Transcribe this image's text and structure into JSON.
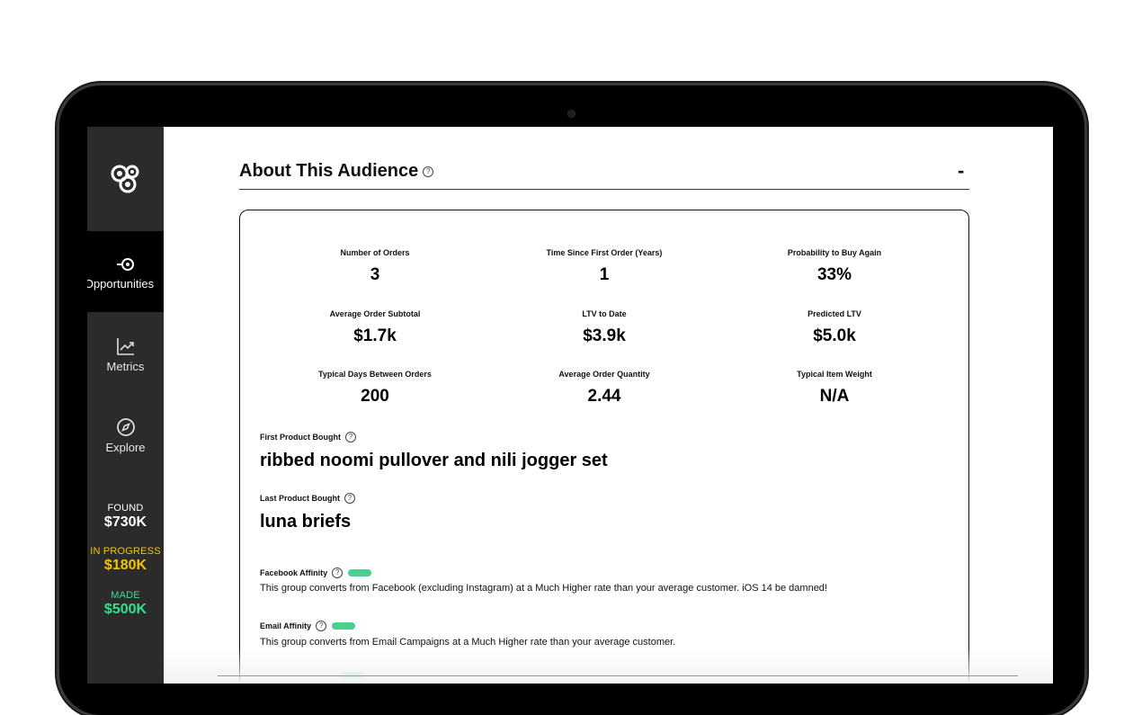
{
  "sidebar": {
    "nav": [
      {
        "label": "Opportunities",
        "icon": "target-icon",
        "active": true
      },
      {
        "label": "Metrics",
        "icon": "chart-icon",
        "active": false
      },
      {
        "label": "Explore",
        "icon": "compass-icon",
        "active": false
      }
    ],
    "stats": [
      {
        "label": "FOUND",
        "value": "$730K",
        "color": "#ffffff"
      },
      {
        "label": "IN PROGRESS",
        "value": "$180K",
        "color": "#f5c400"
      },
      {
        "label": "MADE",
        "value": "$500K",
        "color": "#35e08a"
      }
    ]
  },
  "section": {
    "title": "About This Audience",
    "collapse_label": "-"
  },
  "metrics": [
    {
      "label": "Number of Orders",
      "value": "3"
    },
    {
      "label": "Time Since First Order (Years)",
      "value": "1"
    },
    {
      "label": "Probability to Buy Again",
      "value": "33%"
    },
    {
      "label": "Average Order Subtotal",
      "value": "$1.7k"
    },
    {
      "label": "LTV to Date",
      "value": "$3.9k"
    },
    {
      "label": "Predicted LTV",
      "value": "$5.0k"
    },
    {
      "label": "Typical Days Between Orders",
      "value": "200"
    },
    {
      "label": "Average Order Quantity",
      "value": "2.44"
    },
    {
      "label": "Typical Item Weight",
      "value": "N/A"
    }
  ],
  "products": {
    "first_label": "First Product Bought",
    "first_value": "ribbed noomi pullover and nili jogger set",
    "last_label": "Last Product Bought",
    "last_value": "luna briefs"
  },
  "affinities": [
    {
      "label": "Facebook Affinity",
      "text": "This group converts from Facebook (excluding Instagram) at a Much Higher rate than your average customer. iOS 14 be damned!",
      "color": "#48d08c"
    },
    {
      "label": "Email Affinity",
      "text": "This group converts from Email Campaigns at a Much Higher rate than your average customer.",
      "color": "#48d08c"
    }
  ],
  "colors": {
    "accent_green": "#48d08c",
    "sidebar_bg": "#2b2b2b"
  }
}
